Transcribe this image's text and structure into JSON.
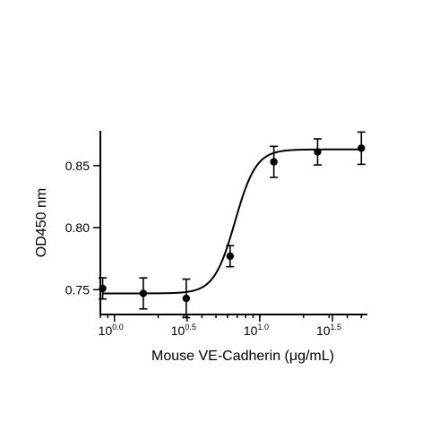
{
  "chart_data": {
    "type": "scatter",
    "title": "",
    "xlabel": "Mouse VE-Cadherin (μg/mL)",
    "ylabel": "OD450 nm",
    "x_scale": "log10",
    "xlim": [
      0.8,
      55
    ],
    "ylim": [
      0.73,
      0.878
    ],
    "x_ticks": [
      {
        "value": 1.0,
        "label_base": "10",
        "label_exp": "0.0"
      },
      {
        "value": 3.1623,
        "label_base": "10",
        "label_exp": "0.5"
      },
      {
        "value": 10.0,
        "label_base": "10",
        "label_exp": "1.0"
      },
      {
        "value": 31.623,
        "label_base": "10",
        "label_exp": "1.5"
      }
    ],
    "y_ticks": [
      {
        "value": 0.75,
        "label": "0.75"
      },
      {
        "value": 0.8,
        "label": "0.80"
      },
      {
        "value": 0.85,
        "label": "0.85"
      }
    ],
    "series": [
      {
        "x": [
          0.83,
          1.58,
          3.12,
          6.25,
          12.5,
          25,
          50
        ],
        "y": [
          0.751,
          0.747,
          0.743,
          0.777,
          0.853,
          0.861,
          0.864
        ],
        "error": [
          0.0085,
          0.0125,
          0.0155,
          0.0085,
          0.0125,
          0.0105,
          0.013
        ]
      }
    ],
    "fit": {
      "model": "4PL",
      "bottom": 0.747,
      "top": 0.863,
      "logEC50": 0.83,
      "hill_slope": 6
    },
    "grid": false,
    "legend": "none"
  }
}
